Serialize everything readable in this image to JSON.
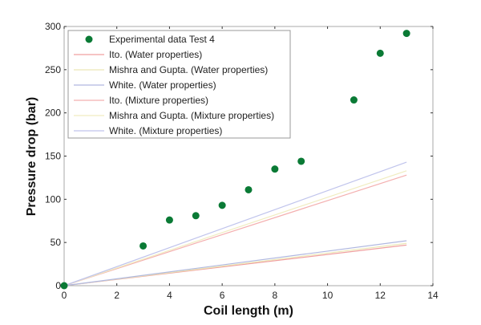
{
  "chart_data": {
    "type": "scatter",
    "title": "",
    "xlabel": "Coil length (m)",
    "ylabel": "Pressure drop (bar)",
    "xlim": [
      0,
      14
    ],
    "ylim": [
      0,
      300
    ],
    "xticks": [
      0,
      2,
      4,
      6,
      8,
      10,
      12,
      14
    ],
    "yticks": [
      0,
      50,
      100,
      150,
      200,
      250,
      300
    ],
    "grid": false,
    "legend_position": "top-left",
    "series": [
      {
        "name": "Experimental data Test 4",
        "kind": "scatter",
        "color": "#0a7a35",
        "x": [
          0,
          3,
          4,
          5,
          6,
          7,
          8,
          9,
          11,
          12,
          13
        ],
        "y": [
          0,
          46,
          76,
          81,
          93,
          111,
          135,
          144,
          215,
          269,
          292
        ]
      },
      {
        "name": "Ito. (Water properties)",
        "kind": "line",
        "color": "#f0a0a0",
        "x": [
          0,
          13
        ],
        "y": [
          0,
          47
        ]
      },
      {
        "name": "Mishra and Gupta. (Water properties)",
        "kind": "line",
        "color": "#ece8b8",
        "x": [
          0,
          13
        ],
        "y": [
          0,
          49
        ]
      },
      {
        "name": "White. (Water properties)",
        "kind": "line",
        "color": "#b0b8e0",
        "x": [
          0,
          13
        ],
        "y": [
          0,
          52
        ]
      },
      {
        "name": "Ito. (Mixture properties)",
        "kind": "line",
        "color": "#f4b0b0",
        "x": [
          0,
          13
        ],
        "y": [
          0,
          128
        ]
      },
      {
        "name": "Mishra and Gupta. (Mixture properties)",
        "kind": "line",
        "color": "#f0ecc0",
        "x": [
          0,
          13
        ],
        "y": [
          0,
          133
        ]
      },
      {
        "name": "White. (Mixture properties)",
        "kind": "line",
        "color": "#c0c4ec",
        "x": [
          0,
          13
        ],
        "y": [
          0,
          143
        ]
      }
    ]
  }
}
